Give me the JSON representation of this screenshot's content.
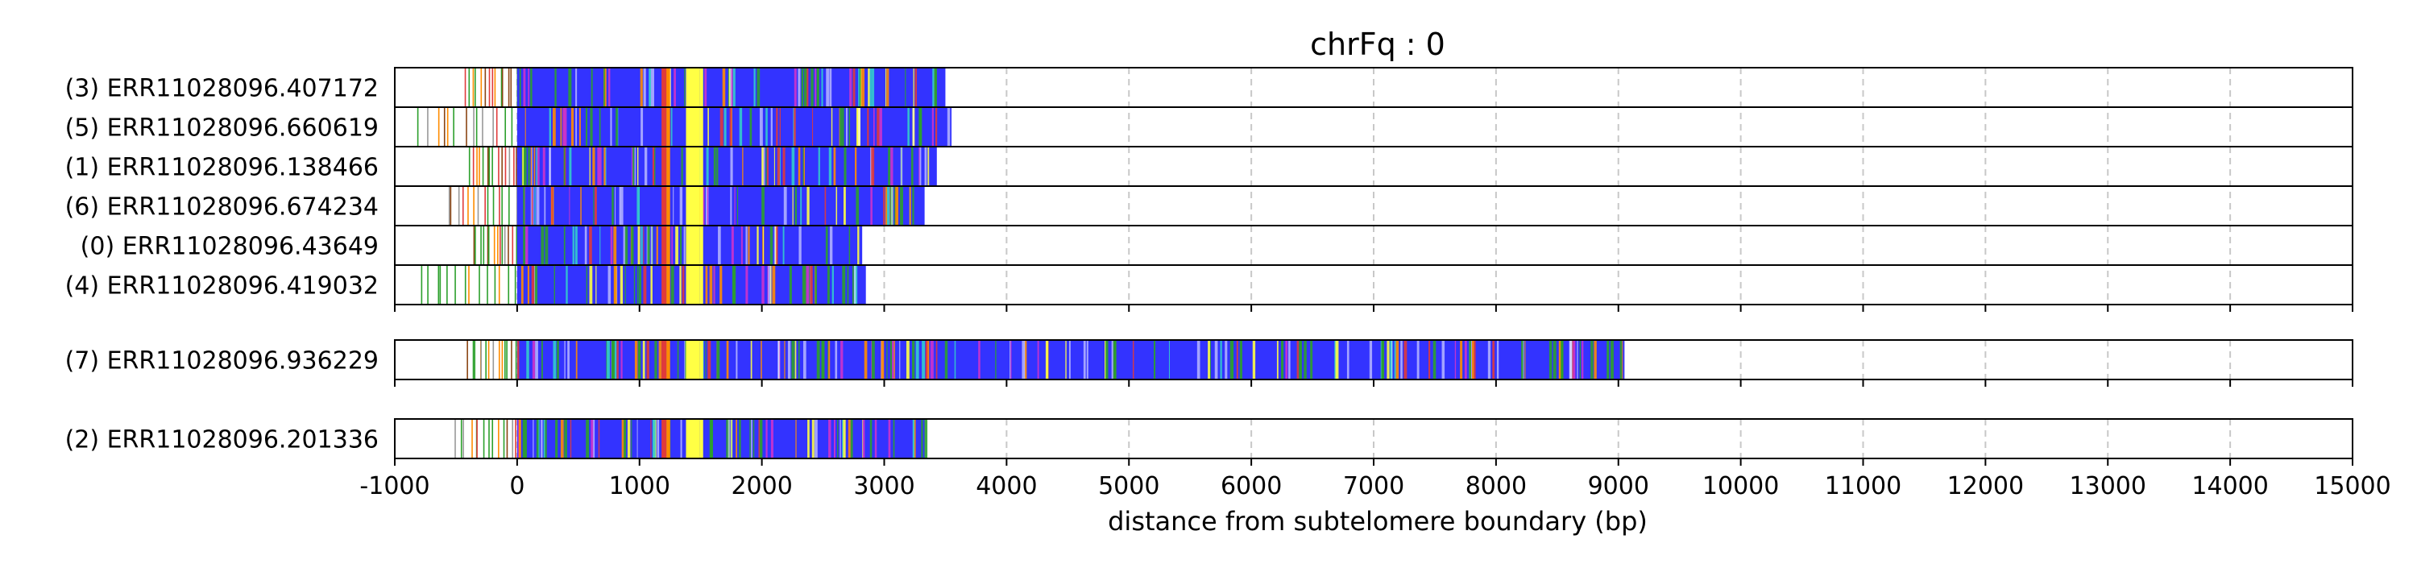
{
  "chart_data": {
    "type": "heatmap",
    "title": "chrFq : 0",
    "xlabel": "distance from subtelomere boundary (bp)",
    "xlim": [
      -1000,
      15000
    ],
    "xticks": [
      "-1000",
      "0",
      "1000",
      "2000",
      "3000",
      "4000",
      "5000",
      "6000",
      "7000",
      "8000",
      "9000",
      "10000",
      "11000",
      "12000",
      "13000",
      "14000",
      "15000"
    ],
    "grid": "vertical dashed",
    "colors": {
      "main": "#3333ff",
      "green": "#2ca02c",
      "yellow": "#ffff44",
      "red": "#e03a3a",
      "orange": "#ff8c00",
      "magenta": "#cc33cc",
      "cyan": "#33cccc",
      "brown": "#8b4513",
      "grid": "#c8c8c8"
    },
    "groups": [
      {
        "reads": [
          {
            "label": "(3) ERR11028096.407172",
            "start": -450,
            "end": 3500,
            "dense_start": 0
          },
          {
            "label": "(5) ERR11028096.660619",
            "start": -820,
            "end": 3550,
            "dense_start": 0
          },
          {
            "label": "(1) ERR11028096.138466",
            "start": -420,
            "end": 3430,
            "dense_start": 0
          },
          {
            "label": "(6) ERR11028096.674234",
            "start": -600,
            "end": 3330,
            "dense_start": 0
          },
          {
            "label": "(0) ERR11028096.43649",
            "start": -380,
            "end": 2820,
            "dense_start": 0
          },
          {
            "label": "(4) ERR11028096.419032",
            "start": -820,
            "end": 2850,
            "dense_start": 0
          }
        ]
      },
      {
        "reads": [
          {
            "label": "(7) ERR11028096.936229",
            "start": -420,
            "end": 9050,
            "dense_start": 0
          }
        ]
      },
      {
        "reads": [
          {
            "label": "(2) ERR11028096.201336",
            "start": -520,
            "end": 3330,
            "dense_start": 0
          }
        ]
      }
    ]
  }
}
